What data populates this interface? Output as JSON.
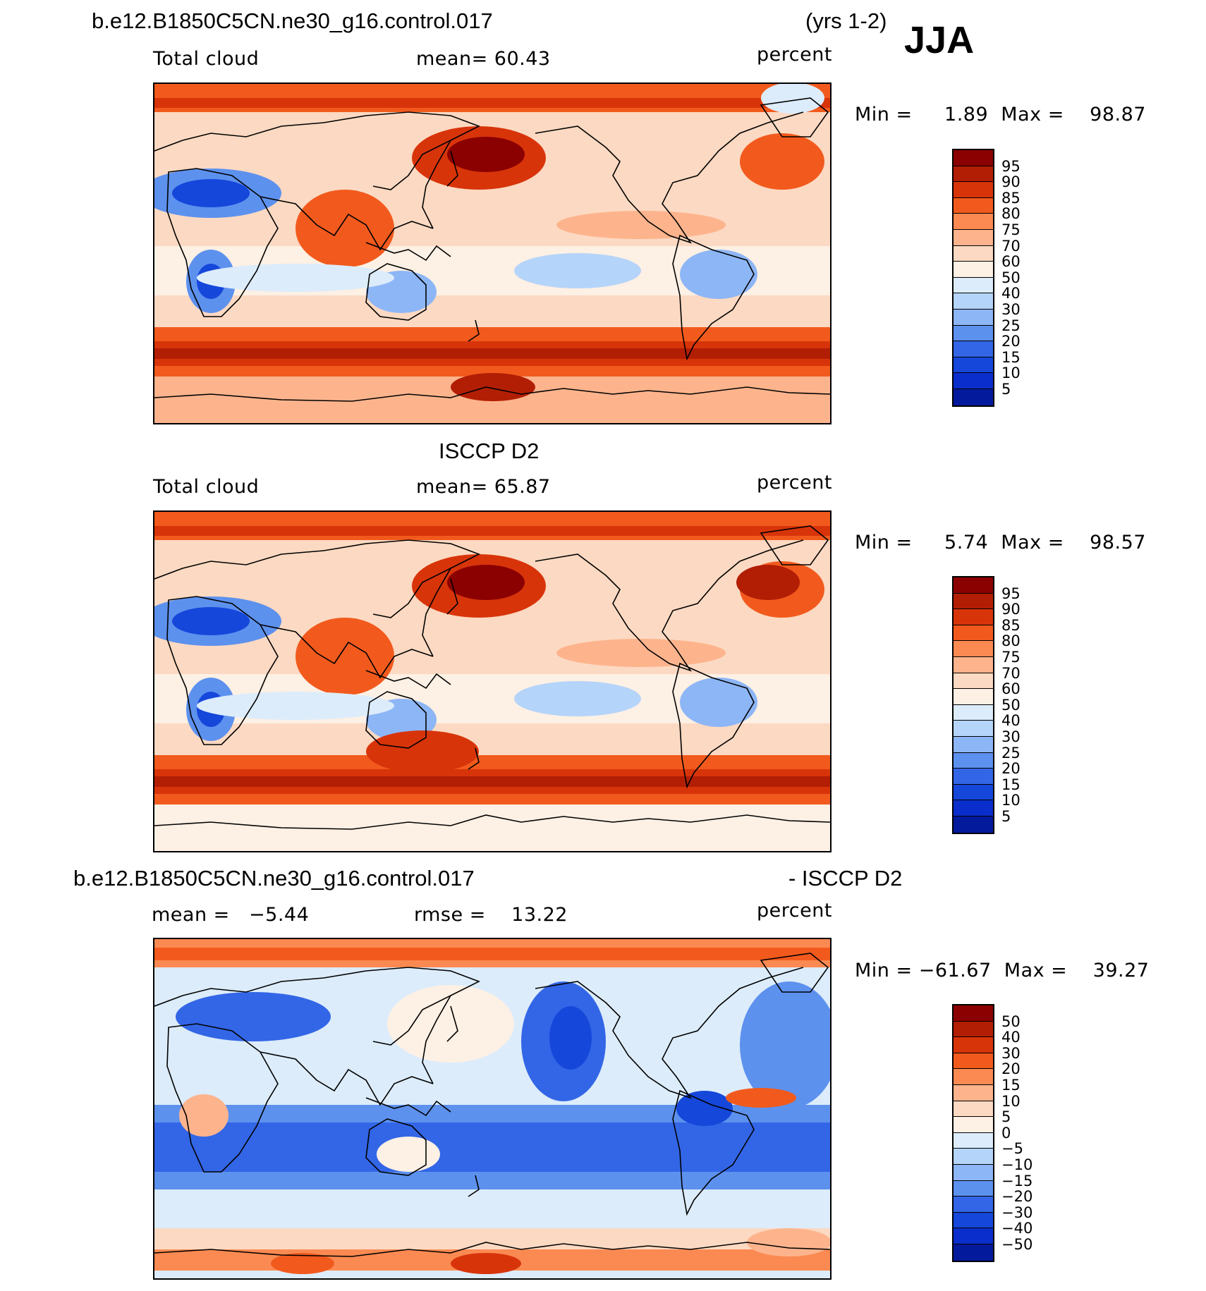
{
  "header": {
    "case_name": "b.e12.B1850C5CN.ne30_g16.control.017",
    "years": "(yrs 1-2)",
    "season": "JJA"
  },
  "panels": [
    {
      "title": "",
      "left": "Total cloud",
      "center": "mean=   60.43",
      "units": "percent",
      "minmax": "Min =     1.89  Max =    98.87",
      "field": "model"
    },
    {
      "title": "ISCCP D2",
      "left": "Total cloud",
      "center": "mean=   65.87",
      "units": "percent",
      "minmax": "Min =     5.74  Max =    98.57",
      "field": "obs"
    },
    {
      "title_left": "b.e12.B1850C5CN.ne30_g16.control.017",
      "title_right": "- ISCCP D2",
      "left": "mean =   −5.44",
      "center": "rmse =    13.22",
      "units": "percent",
      "minmax": "Min = −61.67  Max =    39.27",
      "field": "diff"
    }
  ],
  "colorbar": {
    "colors": [
      "#8b0000",
      "#b21e04",
      "#d8340a",
      "#f25a1d",
      "#fb8a52",
      "#fdb48d",
      "#fcd9c2",
      "#fdf0e4",
      "#dcecfb",
      "#b5d4fa",
      "#8db6f6",
      "#5d91ee",
      "#3366e6",
      "#1547db",
      "#0a2ecb",
      "#041a9c"
    ],
    "labels_abs": [
      "95",
      "90",
      "85",
      "80",
      "75",
      "70",
      "60",
      "50",
      "40",
      "30",
      "25",
      "20",
      "15",
      "10",
      "5"
    ],
    "labels_diff": [
      "50",
      "40",
      "30",
      "20",
      "15",
      "10",
      "5",
      "0",
      "−5",
      "−10",
      "−15",
      "−20",
      "−30",
      "−40",
      "−50"
    ]
  }
}
